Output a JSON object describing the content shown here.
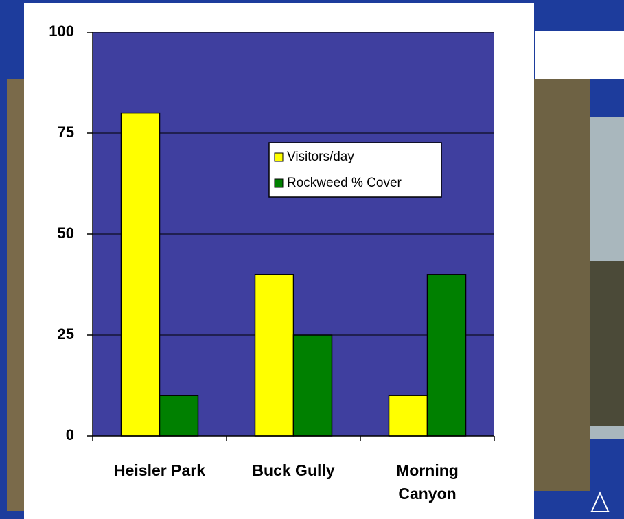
{
  "chart_data": {
    "type": "bar",
    "categories": [
      "Heisler Park",
      "Buck Gully",
      "Morning Canyon"
    ],
    "series": [
      {
        "name": "Visitors/day",
        "color": "#ffff00",
        "values": [
          80,
          40,
          10
        ]
      },
      {
        "name": "Rockweed % Cover",
        "color": "#008000",
        "values": [
          10,
          25,
          40
        ]
      }
    ],
    "ylim": [
      0,
      100
    ],
    "yticks": [
      0,
      25,
      50,
      75,
      100
    ],
    "grid": true,
    "plot_color": "#3f3f9f"
  }
}
